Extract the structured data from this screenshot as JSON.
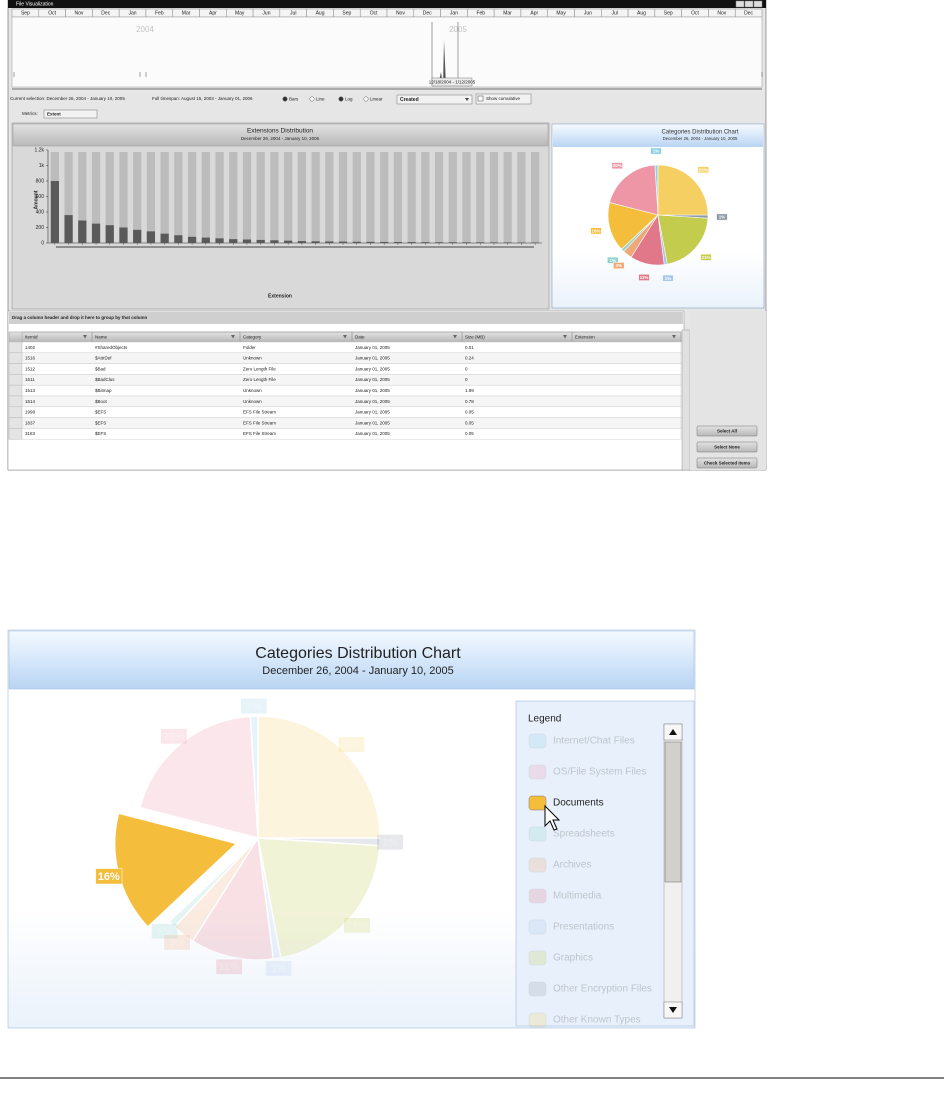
{
  "window": {
    "title": "File Visualization"
  },
  "timeline": {
    "months": [
      "Sep",
      "Oct",
      "Nov",
      "Dec",
      "Jan",
      "Feb",
      "Mar",
      "Apr",
      "May",
      "Jun",
      "Jul",
      "Aug",
      "Sep",
      "Oct",
      "Nov",
      "Dec",
      "Jan",
      "Feb",
      "Mar",
      "Apr",
      "May",
      "Jun",
      "Jul",
      "Aug",
      "Sep",
      "Oct",
      "Nov",
      "Dec"
    ],
    "years": [
      "2004",
      "2005"
    ],
    "selection_label": "12/18/2004 - 1/12/2005"
  },
  "controls": {
    "current_selection": "Current selection: December 26, 2004 - January 10, 2005",
    "full_timespan": "Full timespan: August 15, 2003 - January 01, 2006",
    "radios": [
      "Bars",
      "Line",
      "Log",
      "Linear"
    ],
    "dropdown": "Created",
    "checkbox": "Show cumulative",
    "metrics_label": "Metrics:",
    "metrics_value": "Extent"
  },
  "chart_data": [
    {
      "type": "bar",
      "title": "Extensions Distribution",
      "subtitle": "December 26, 2004 - January 10, 2005",
      "y_label": "Amount",
      "x_label": "Extension",
      "categories": [
        null,
        null,
        null,
        null,
        null,
        null,
        null,
        null,
        null,
        null,
        null,
        null,
        null,
        null,
        null,
        null,
        null,
        null,
        null,
        null,
        null,
        null,
        null,
        null,
        null,
        null,
        null,
        null,
        null,
        null,
        null,
        null,
        null,
        null,
        null,
        null
      ],
      "values": [
        800,
        360,
        290,
        250,
        230,
        200,
        170,
        150,
        120,
        100,
        80,
        70,
        60,
        50,
        45,
        40,
        35,
        30,
        25,
        22,
        20,
        18,
        16,
        15,
        14,
        13,
        12,
        11,
        10,
        10,
        9,
        9,
        8,
        8,
        7,
        7
      ],
      "color": "#5a5a5a",
      "ylim": [
        0,
        1200
      ],
      "yticks": [
        0,
        200,
        400,
        600,
        800,
        {
          "value": 1000,
          "label": "1k"
        },
        {
          "value": 1200,
          "label": "1.2k"
        }
      ]
    },
    {
      "type": "pie",
      "title": "Categories Distribution Chart",
      "subtitle": "December 26, 2004 - January 10, 2005",
      "legend_title": "Legend",
      "categories": [
        "Internet/Chat Files",
        "OS/File System Files",
        "Documents",
        "Spreadsheets",
        "Archives",
        "Multimedia",
        "Presentations",
        "Graphics",
        "Other Encryption Files",
        "Other Known Types"
      ],
      "values": [
        1,
        20,
        16,
        1,
        3,
        11,
        1,
        21,
        1,
        25
      ],
      "value_labels": [
        "1%",
        "20%",
        "16%",
        "1%",
        "3%",
        "11%",
        "1%",
        "21%",
        "1%",
        "25%"
      ],
      "colors": [
        "#8fd0e6",
        "#ee96a6",
        "#f5bd3c",
        "#8ed3cc",
        "#f0a878",
        "#e0788a",
        "#a9c6ea",
        "#c4cc4e",
        "#8f9aa6",
        "#f6cf62"
      ],
      "highlight": 2
    }
  ],
  "table": {
    "group_hint": "Drag a column header and drop it here to group by that column",
    "columns": [
      "ItemId",
      "Name",
      "Category",
      "Date",
      "Size (MB)",
      "Extension"
    ],
    "rows": [
      [
        "1402",
        "#SharedObjects",
        "Folder",
        "January 01, 2005",
        "0.01"
      ],
      [
        "1516",
        "$AttrDef",
        "Unknown",
        "January 01, 2005",
        "0.24"
      ],
      [
        "1512",
        "$Bad",
        "Zero Length File",
        "January 01, 2005",
        "0"
      ],
      [
        "1511",
        "$BadClus",
        "Zero Length File",
        "January 01, 2005",
        "0"
      ],
      [
        "1513",
        "$Bitmap",
        "Unknown",
        "January 01, 2005",
        "1.99"
      ],
      [
        "1514",
        "$Boot",
        "Unknown",
        "January 01, 2005",
        "0.78"
      ],
      [
        "1998",
        "$EFS",
        "EFS File Stream",
        "January 01, 2005",
        "0.05"
      ],
      [
        "1837",
        "$EFS",
        "EFS File Stream",
        "January 01, 2005",
        "0.05"
      ],
      [
        "3183",
        "$EFS",
        "EFS File Stream",
        "January 01, 2005",
        "0.05"
      ]
    ]
  },
  "buttons": [
    "Select All",
    "Select None",
    "Check Selected Items"
  ]
}
